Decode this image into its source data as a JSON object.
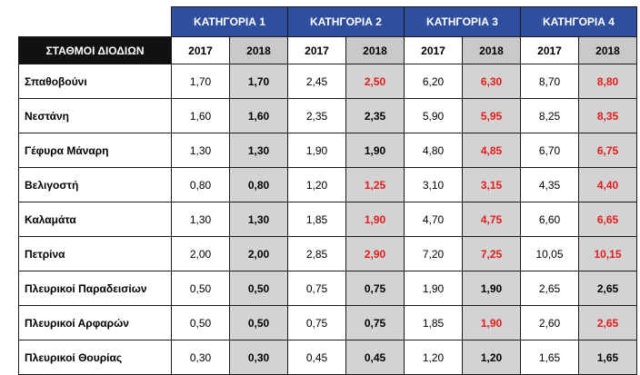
{
  "categories": [
    "ΚΑΤΗΓΟΡΙΑ 1",
    "ΚΑΤΗΓΟΡΙΑ 2",
    "ΚΑΤΗΓΟΡΙΑ 3",
    "ΚΑΤΗΓΟΡΙΑ 4"
  ],
  "station_header": "ΣΤΑΘΜΟΙ ΔΙΟΔΙΩΝ",
  "years": [
    "2017",
    "2018"
  ],
  "colors": {
    "header_blue": "#2f4f9e",
    "increase_red": "#e31b1b",
    "header_black": "#111111",
    "shade_gray": "#d3d3d3"
  },
  "rows": [
    {
      "station": "Σπαθοβούνι",
      "values": [
        {
          "y2017": "1,70",
          "y2018": "1,70",
          "increased": false
        },
        {
          "y2017": "2,45",
          "y2018": "2,50",
          "increased": true
        },
        {
          "y2017": "6,20",
          "y2018": "6,30",
          "increased": true
        },
        {
          "y2017": "8,70",
          "y2018": "8,80",
          "increased": true
        }
      ]
    },
    {
      "station": "Νεστάνη",
      "values": [
        {
          "y2017": "1,60",
          "y2018": "1,60",
          "increased": false
        },
        {
          "y2017": "2,35",
          "y2018": "2,35",
          "increased": false
        },
        {
          "y2017": "5,90",
          "y2018": "5,95",
          "increased": true
        },
        {
          "y2017": "8,25",
          "y2018": "8,35",
          "increased": true
        }
      ]
    },
    {
      "station": "Γέφυρα Μάναρη",
      "values": [
        {
          "y2017": "1,30",
          "y2018": "1,30",
          "increased": false
        },
        {
          "y2017": "1,90",
          "y2018": "1,90",
          "increased": false
        },
        {
          "y2017": "4,80",
          "y2018": "4,85",
          "increased": true
        },
        {
          "y2017": "6,70",
          "y2018": "6,75",
          "increased": true
        }
      ]
    },
    {
      "station": "Βελιγοστή",
      "values": [
        {
          "y2017": "0,80",
          "y2018": "0,80",
          "increased": false
        },
        {
          "y2017": "1,20",
          "y2018": "1,25",
          "increased": true
        },
        {
          "y2017": "3,10",
          "y2018": "3,15",
          "increased": true
        },
        {
          "y2017": "4,35",
          "y2018": "4,40",
          "increased": true
        }
      ]
    },
    {
      "station": "Καλαμάτα",
      "values": [
        {
          "y2017": "1,30",
          "y2018": "1,30",
          "increased": false
        },
        {
          "y2017": "1,85",
          "y2018": "1,90",
          "increased": true
        },
        {
          "y2017": "4,70",
          "y2018": "4,75",
          "increased": true
        },
        {
          "y2017": "6,60",
          "y2018": "6,65",
          "increased": true
        }
      ]
    },
    {
      "station": "Πετρίνα",
      "values": [
        {
          "y2017": "2,00",
          "y2018": "2,00",
          "increased": false
        },
        {
          "y2017": "2,85",
          "y2018": "2,90",
          "increased": true
        },
        {
          "y2017": "7,20",
          "y2018": "7,25",
          "increased": true
        },
        {
          "y2017": "10,05",
          "y2018": "10,15",
          "increased": true
        }
      ]
    },
    {
      "station": "Πλευρικοί Παραδεισίων",
      "values": [
        {
          "y2017": "0,50",
          "y2018": "0,50",
          "increased": false
        },
        {
          "y2017": "0,75",
          "y2018": "0,75",
          "increased": false
        },
        {
          "y2017": "1,90",
          "y2018": "1,90",
          "increased": false
        },
        {
          "y2017": "2,65",
          "y2018": "2,65",
          "increased": false
        }
      ]
    },
    {
      "station": "Πλευρικοί Αρφαρών",
      "values": [
        {
          "y2017": "0,50",
          "y2018": "0,50",
          "increased": false
        },
        {
          "y2017": "0,75",
          "y2018": "0,75",
          "increased": false
        },
        {
          "y2017": "1,85",
          "y2018": "1,90",
          "increased": true
        },
        {
          "y2017": "2,60",
          "y2018": "2,65",
          "increased": true
        }
      ]
    },
    {
      "station": "Πλευρικοί Θουρίας",
      "values": [
        {
          "y2017": "0,30",
          "y2018": "0,30",
          "increased": false
        },
        {
          "y2017": "0,45",
          "y2018": "0,45",
          "increased": false
        },
        {
          "y2017": "1,20",
          "y2018": "1,20",
          "increased": false
        },
        {
          "y2017": "1,65",
          "y2018": "1,65",
          "increased": false
        }
      ]
    }
  ]
}
